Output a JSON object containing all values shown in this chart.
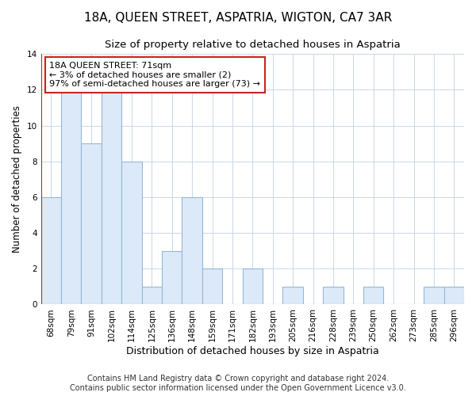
{
  "title": "18A, QUEEN STREET, ASPATRIA, WIGTON, CA7 3AR",
  "subtitle": "Size of property relative to detached houses in Aspatria",
  "xlabel": "Distribution of detached houses by size in Aspatria",
  "ylabel": "Number of detached properties",
  "bar_labels": [
    "68sqm",
    "79sqm",
    "91sqm",
    "102sqm",
    "114sqm",
    "125sqm",
    "136sqm",
    "148sqm",
    "159sqm",
    "171sqm",
    "182sqm",
    "193sqm",
    "205sqm",
    "216sqm",
    "228sqm",
    "239sqm",
    "250sqm",
    "262sqm",
    "273sqm",
    "285sqm",
    "296sqm"
  ],
  "bar_values": [
    6,
    12,
    9,
    12,
    8,
    1,
    3,
    6,
    2,
    0,
    2,
    0,
    1,
    0,
    1,
    0,
    1,
    0,
    0,
    1,
    1
  ],
  "bar_fill_color": "#dce9f8",
  "bar_edge_color": "#94b8d8",
  "red_line_color": "#cc2222",
  "annotation_text": "18A QUEEN STREET: 71sqm\n← 3% of detached houses are smaller (2)\n97% of semi-detached houses are larger (73) →",
  "annotation_box_edge_color": "#cc2222",
  "annotation_box_face_color": "#ffffff",
  "ylim": [
    0,
    14
  ],
  "yticks": [
    0,
    2,
    4,
    6,
    8,
    10,
    12,
    14
  ],
  "footer_line1": "Contains HM Land Registry data © Crown copyright and database right 2024.",
  "footer_line2": "Contains public sector information licensed under the Open Government Licence v3.0.",
  "background_color": "#ffffff",
  "grid_color": "#c8d8e8",
  "title_fontsize": 11,
  "subtitle_fontsize": 9.5,
  "xlabel_fontsize": 9,
  "ylabel_fontsize": 8.5,
  "tick_fontsize": 7.5,
  "footer_fontsize": 7,
  "annotation_fontsize": 8
}
